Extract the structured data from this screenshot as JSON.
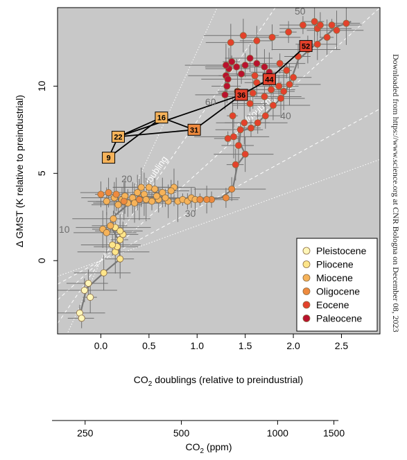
{
  "side_note": "Downloaded from https://www.science.org at CNR Bologna on December 08, 2023",
  "chart_data": {
    "type": "scatter",
    "xlabel_main": "CO",
    "xlabel_sub": "2",
    "xlabel_rest": " doublings (relative to preindustrial)",
    "ylabel": "Δ GMST (K relative to preindustrial)",
    "xlim": [
      -0.45,
      2.9
    ],
    "ylim": [
      -4.2,
      14.5
    ],
    "x_ticks": [
      0.0,
      0.5,
      1.0,
      1.5,
      2.0,
      2.5
    ],
    "x_tick_labels": [
      "0.0",
      "0.5",
      "1.0",
      "1.5",
      "2.0",
      "2.5"
    ],
    "y_ticks": [
      0,
      5,
      10
    ],
    "y_tick_labels": [
      "0",
      "5",
      "10"
    ],
    "grid": false,
    "background": "#c8c8c8",
    "secondary_axis": {
      "label_main": "CO",
      "label_sub": "2",
      "label_rest": " (ppm)",
      "ticks_ppm": [
        250,
        500,
        1000,
        1500
      ],
      "tick_labels": [
        "250",
        "500",
        "1000",
        "1500"
      ],
      "range_ppm": [
        197,
        1550
      ],
      "preindustrial_ppm": 280
    },
    "sensitivity_lines": [
      {
        "sens": 2,
        "style": "dotted"
      },
      {
        "sens": 3,
        "style": "dashed"
      },
      {
        "sens": 5,
        "style": "dashed",
        "label": "5 °C/doubling"
      },
      {
        "sens": 8,
        "style": "dashed",
        "label": "8 °C/doubling"
      },
      {
        "sens": 12,
        "style": "dotted"
      }
    ],
    "age_labels": [
      {
        "text": "10",
        "x": -0.38,
        "y": 1.6
      },
      {
        "text": "20",
        "x": 0.27,
        "y": 4.5
      },
      {
        "text": "30",
        "x": 0.93,
        "y": 2.5
      },
      {
        "text": "40",
        "x": 1.92,
        "y": 8.1
      },
      {
        "text": "50",
        "x": 2.07,
        "y": 14.1
      },
      {
        "text": "60",
        "x": 1.14,
        "y": 8.9
      }
    ],
    "colors": {
      "Pleistocene": "#fff6b8",
      "Pliocene": "#fde58a",
      "Miocene": "#f6b35a",
      "Oligocene": "#ee8a3e",
      "Eocene": "#e4412b",
      "Paleocene": "#b9112e"
    },
    "legend": {
      "position": "bottom-right",
      "entries": [
        "Pleistocene",
        "Pliocene",
        "Miocene",
        "Oligocene",
        "Eocene",
        "Paleocene"
      ]
    },
    "series": [
      {
        "name": "Pleistocene",
        "points": [
          [
            -0.22,
            -3.0
          ],
          [
            -0.2,
            -3.3
          ],
          [
            -0.17,
            -1.7
          ],
          [
            -0.13,
            -1.3
          ],
          [
            -0.11,
            -2.1
          ]
        ]
      },
      {
        "name": "Pliocene",
        "points": [
          [
            0.03,
            -0.7
          ],
          [
            0.2,
            0.1
          ],
          [
            0.15,
            0.5
          ],
          [
            0.17,
            0.8
          ],
          [
            0.2,
            1.2
          ],
          [
            0.12,
            0.9
          ],
          [
            0.23,
            1.5
          ],
          [
            0.15,
            1.9
          ],
          [
            0.2,
            1.7
          ]
        ]
      },
      {
        "name": "Miocene",
        "points": [
          [
            0.02,
            1.8
          ],
          [
            0.06,
            1.6
          ],
          [
            0.1,
            2.0
          ],
          [
            0.13,
            2.4
          ],
          [
            0.18,
            3.2
          ],
          [
            0.22,
            3.5
          ],
          [
            0.28,
            3.3
          ],
          [
            0.33,
            3.6
          ],
          [
            0.38,
            3.9
          ],
          [
            0.42,
            4.2
          ],
          [
            0.45,
            3.8
          ],
          [
            0.5,
            4.2
          ],
          [
            0.53,
            3.4
          ],
          [
            0.56,
            4.1
          ],
          [
            0.6,
            3.5
          ],
          [
            0.64,
            3.9
          ],
          [
            0.7,
            3.4
          ],
          [
            0.76,
            4.2
          ],
          [
            0.8,
            3.4
          ],
          [
            0.85,
            3.5
          ],
          [
            0.9,
            3.4
          ],
          [
            0.94,
            3.6
          ],
          [
            0.98,
            3.5
          ],
          [
            0.06,
            3.4
          ],
          [
            0.14,
            3.6
          ],
          [
            0.25,
            3.7
          ],
          [
            0.35,
            3.3
          ],
          [
            0.47,
            3.5
          ],
          [
            0.58,
            3.7
          ],
          [
            0.67,
            3.6
          ],
          [
            0.73,
            4.0
          ]
        ]
      },
      {
        "name": "Oligocene",
        "points": [
          [
            0.0,
            3.8
          ],
          [
            0.08,
            3.9
          ],
          [
            0.16,
            3.8
          ],
          [
            0.24,
            3.4
          ],
          [
            0.4,
            3.5
          ],
          [
            1.03,
            3.5
          ],
          [
            1.15,
            3.5
          ],
          [
            1.3,
            3.6
          ],
          [
            1.36,
            4.1
          ],
          [
            1.1,
            3.5
          ]
        ]
      },
      {
        "name": "Eocene",
        "points": [
          [
            1.4,
            5.5
          ],
          [
            1.5,
            6.1
          ],
          [
            1.43,
            6.6
          ],
          [
            1.38,
            7.1
          ],
          [
            1.45,
            7.5
          ],
          [
            1.56,
            7.6
          ],
          [
            1.63,
            7.9
          ],
          [
            1.71,
            8.3
          ],
          [
            1.79,
            8.9
          ],
          [
            1.87,
            9.3
          ],
          [
            1.9,
            9.7
          ],
          [
            1.96,
            10.1
          ],
          [
            2.0,
            10.5
          ],
          [
            1.93,
            10.9
          ],
          [
            1.86,
            11.3
          ],
          [
            2.05,
            11.7
          ],
          [
            2.15,
            12.1
          ],
          [
            2.25,
            12.4
          ],
          [
            2.35,
            12.8
          ],
          [
            2.45,
            13.2
          ],
          [
            2.55,
            13.6
          ],
          [
            2.25,
            13.3
          ],
          [
            2.1,
            13.5
          ],
          [
            1.95,
            13.1
          ],
          [
            1.78,
            12.8
          ],
          [
            1.62,
            12.6
          ],
          [
            1.48,
            12.9
          ],
          [
            1.35,
            12.5
          ],
          [
            2.22,
            13.7
          ],
          [
            2.4,
            13.5
          ],
          [
            1.55,
            9.0
          ],
          [
            1.7,
            9.4
          ],
          [
            1.77,
            9.8
          ],
          [
            1.62,
            10.2
          ],
          [
            1.58,
            9.6
          ],
          [
            1.42,
            9.7
          ],
          [
            1.37,
            8.3
          ],
          [
            1.49,
            7.9
          ],
          [
            1.32,
            7.0
          ],
          [
            1.6,
            10.6
          ],
          [
            1.85,
            10.0
          ],
          [
            2.28,
            13.5
          ]
        ]
      },
      {
        "name": "Paleocene",
        "points": [
          [
            1.29,
            9.5
          ],
          [
            1.31,
            10.0
          ],
          [
            1.3,
            10.6
          ],
          [
            1.33,
            11.0
          ],
          [
            1.36,
            11.4
          ],
          [
            1.41,
            11.1
          ],
          [
            1.46,
            10.7
          ],
          [
            1.5,
            11.2
          ],
          [
            1.55,
            11.6
          ],
          [
            1.62,
            11.3
          ],
          [
            1.7,
            11.1
          ],
          [
            1.75,
            10.8
          ],
          [
            1.3,
            11.2
          ],
          [
            1.32,
            10.4
          ]
        ]
      }
    ],
    "trend_path": [
      [
        -0.22,
        -3.2
      ],
      [
        -0.15,
        -1.6
      ],
      [
        0.05,
        -0.6
      ],
      [
        0.2,
        0.1
      ],
      [
        0.18,
        1.2
      ],
      [
        0.1,
        2.0
      ],
      [
        0.15,
        2.6
      ],
      [
        0.3,
        3.3
      ],
      [
        0.45,
        3.7
      ],
      [
        0.7,
        3.6
      ],
      [
        1.0,
        3.5
      ],
      [
        1.25,
        3.6
      ],
      [
        1.37,
        4.1
      ],
      [
        1.42,
        5.5
      ],
      [
        1.5,
        6.1
      ],
      [
        1.44,
        6.8
      ],
      [
        1.45,
        7.4
      ],
      [
        1.6,
        7.7
      ],
      [
        1.75,
        8.6
      ],
      [
        1.9,
        9.5
      ],
      [
        1.98,
        10.4
      ],
      [
        2.05,
        11.5
      ],
      [
        2.25,
        12.5
      ],
      [
        2.45,
        13.4
      ],
      [
        2.6,
        13.7
      ]
    ],
    "highlight_path": [
      [
        0.08,
        5.9
      ],
      [
        0.18,
        7.1
      ],
      [
        0.63,
        8.2
      ],
      [
        0.97,
        7.5
      ],
      [
        1.46,
        9.5
      ],
      [
        1.75,
        10.4
      ],
      [
        2.13,
        12.3
      ]
    ],
    "highlight_edges": [
      [
        0,
        2
      ],
      [
        1,
        3
      ],
      [
        1,
        4
      ]
    ],
    "highlights": [
      {
        "label": "9",
        "x": 0.08,
        "y": 5.9,
        "color": "#f6b35a"
      },
      {
        "label": "22",
        "x": 0.18,
        "y": 7.1,
        "color": "#f6b35a"
      },
      {
        "label": "16",
        "x": 0.63,
        "y": 8.2,
        "color": "#f6b35a"
      },
      {
        "label": "31",
        "x": 0.97,
        "y": 7.5,
        "color": "#ee8a3e"
      },
      {
        "label": "36",
        "x": 1.46,
        "y": 9.5,
        "color": "#e4412b"
      },
      {
        "label": "44",
        "x": 1.75,
        "y": 10.4,
        "color": "#e4412b"
      },
      {
        "label": "52",
        "x": 2.13,
        "y": 12.3,
        "color": "#e4412b"
      }
    ]
  }
}
